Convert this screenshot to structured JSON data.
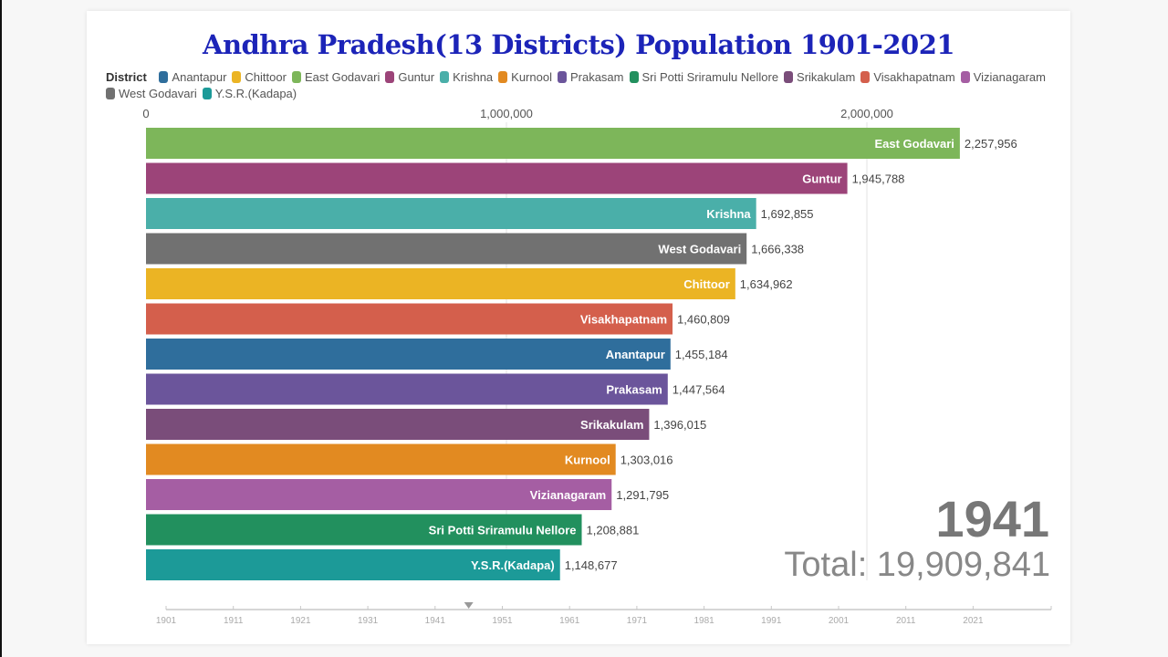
{
  "chart_data": {
    "type": "bar",
    "orientation": "horizontal",
    "title": "Andhra Pradesh(13 Districts) Population 1901-2021",
    "legend_title": "District",
    "legend_placement": "top",
    "legend": [
      {
        "name": "Anantapur",
        "color": "#2f6e9c"
      },
      {
        "name": "Chittoor",
        "color": "#ebb424"
      },
      {
        "name": "East Godavari",
        "color": "#7db65a"
      },
      {
        "name": "Guntur",
        "color": "#9c4479"
      },
      {
        "name": "Krishna",
        "color": "#4aafa9"
      },
      {
        "name": "Kurnool",
        "color": "#e28a21"
      },
      {
        "name": "Prakasam",
        "color": "#6b559b"
      },
      {
        "name": "Sri Potti Sriramulu Nellore",
        "color": "#22905e"
      },
      {
        "name": "Srikakulam",
        "color": "#7a4d7a"
      },
      {
        "name": "Visakhapatnam",
        "color": "#d45f4c"
      },
      {
        "name": "Vizianagaram",
        "color": "#a55ea3"
      },
      {
        "name": "West Godavari",
        "color": "#717171"
      },
      {
        "name": "Y.S.R.(Kadapa)",
        "color": "#1c9a98"
      }
    ],
    "categories": [
      "East Godavari",
      "Guntur",
      "Krishna",
      "West Godavari",
      "Chittoor",
      "Visakhapatnam",
      "Anantapur",
      "Prakasam",
      "Srikakulam",
      "Kurnool",
      "Vizianagaram",
      "Sri Potti Sriramulu Nellore",
      "Y.S.R.(Kadapa)"
    ],
    "values": [
      2257956,
      1945788,
      1692855,
      1666338,
      1634962,
      1460809,
      1455184,
      1447564,
      1396015,
      1303016,
      1291795,
      1208881,
      1148677
    ],
    "value_labels": [
      "2,257,956",
      "1,945,788",
      "1,692,855",
      "1,666,338",
      "1,634,962",
      "1,460,809",
      "1,455,184",
      "1,447,564",
      "1,396,015",
      "1,303,016",
      "1,291,795",
      "1,208,881",
      "1,148,677"
    ],
    "xaxis": {
      "range": [
        0,
        2500000
      ],
      "ticks": [
        0,
        1000000,
        2000000
      ],
      "tick_labels": [
        "0",
        "1,000,000",
        "2,000,000"
      ],
      "position": "top",
      "grid": true
    },
    "current_year": "1941",
    "total_label": "Total: 19,909,841",
    "timeline": {
      "ticks": [
        "1901",
        "1911",
        "1921",
        "1931",
        "1941",
        "1951",
        "1961",
        "1971",
        "1981",
        "1991",
        "2001",
        "2011",
        "2021"
      ],
      "range": [
        1901,
        2033
      ],
      "marker_year": 1946
    }
  }
}
